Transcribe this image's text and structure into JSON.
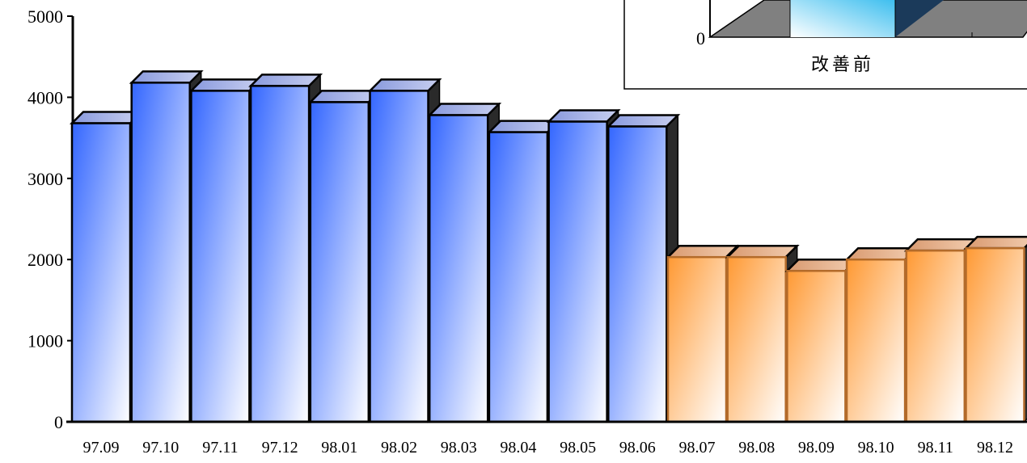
{
  "chart_data": [
    {
      "type": "bar",
      "title": "",
      "xlabel": "",
      "ylabel": "",
      "ylim": [
        0,
        5000
      ],
      "yticks": [
        0,
        1000,
        2000,
        3000,
        4000,
        5000
      ],
      "grid": false,
      "categories": [
        "97.09",
        "97.10",
        "97.11",
        "97.12",
        "98.01",
        "98.02",
        "98.03",
        "98.04",
        "98.05",
        "98.06",
        "98.07",
        "98.08",
        "98.09",
        "98.10",
        "98.11",
        "98.12"
      ],
      "values": [
        3680,
        4180,
        4080,
        4140,
        3940,
        4080,
        3780,
        3570,
        3700,
        3640,
        2030,
        2030,
        1860,
        2000,
        2110,
        2140
      ],
      "colors": {
        "before": "#3366ff",
        "after": "#ff9933"
      },
      "before_count": 10
    },
    {
      "type": "bar",
      "categories": [
        "改善前"
      ],
      "yticks": [
        0
      ]
    }
  ]
}
